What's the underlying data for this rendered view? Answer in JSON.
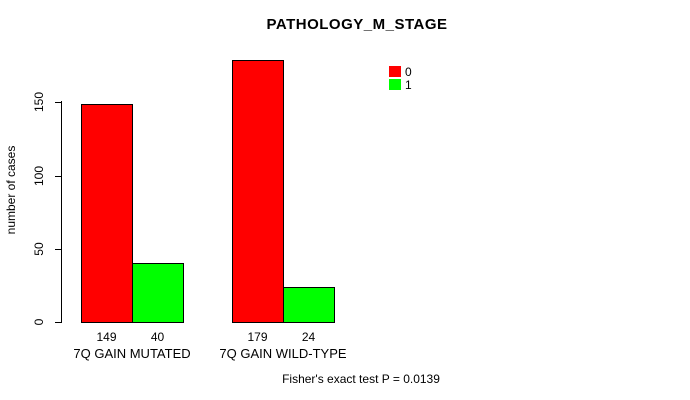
{
  "title": "PATHOLOGY_M_STAGE",
  "ylabel": "number of cases",
  "footer": "Fisher's exact test P = 0.0139",
  "colors": {
    "series0": "#ff0000",
    "series1": "#00ff00",
    "axis": "#000000",
    "background": "#ffffff"
  },
  "chart_data": {
    "type": "bar",
    "title": "PATHOLOGY_M_STAGE",
    "xlabel": "",
    "ylabel": "number of cases",
    "categories": [
      "7Q GAIN MUTATED",
      "7Q GAIN WILD-TYPE"
    ],
    "series": [
      {
        "name": "0",
        "color": "#ff0000",
        "values": [
          149,
          179
        ]
      },
      {
        "name": "1",
        "color": "#00ff00",
        "values": [
          40,
          24
        ]
      }
    ],
    "bar_value_labels": [
      [
        "149",
        "40"
      ],
      [
        "179",
        "24"
      ]
    ],
    "yticks": [
      0,
      50,
      100,
      150
    ],
    "ylim": [
      0,
      185
    ],
    "grid": false,
    "legend_position": "top-right",
    "legend_entries": [
      "0",
      "1"
    ],
    "annotation": "Fisher's exact test P = 0.0139"
  }
}
